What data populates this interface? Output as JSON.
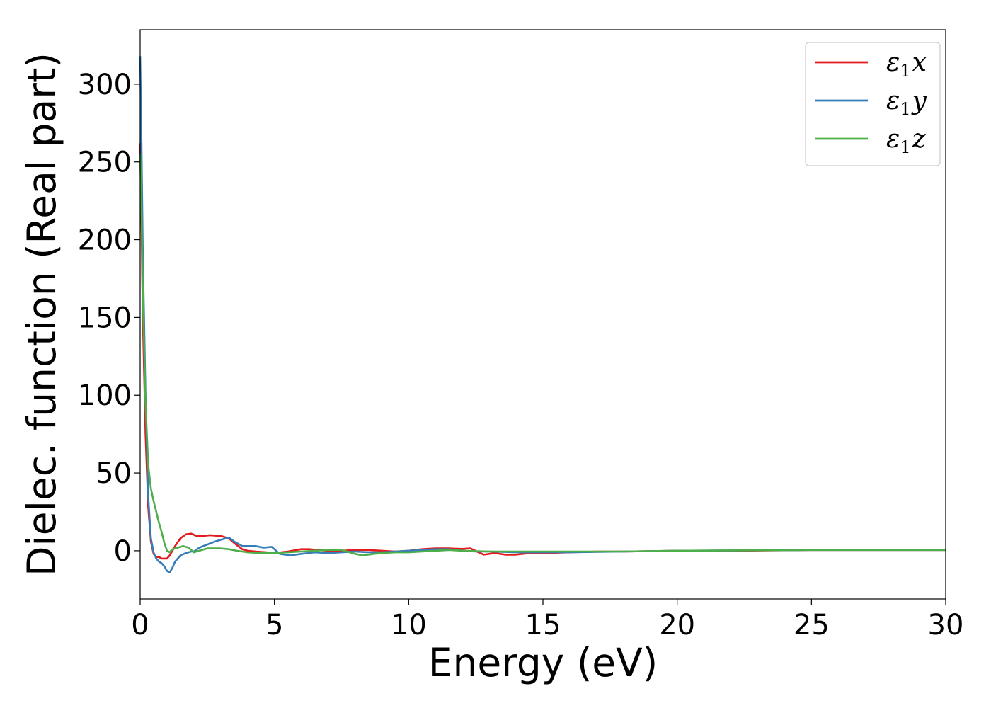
{
  "chart_data": {
    "type": "line",
    "xlabel": "Energy (eV)",
    "ylabel": "Dielec. function (Real part)",
    "xlim": [
      0,
      30
    ],
    "ylim": [
      -31,
      335
    ],
    "xticks": [
      0,
      5,
      10,
      15,
      20,
      25,
      30
    ],
    "xtick_labels": [
      "0",
      "5",
      "10",
      "15",
      "20",
      "25",
      "30"
    ],
    "yticks": [
      0,
      50,
      100,
      150,
      200,
      250,
      300
    ],
    "ytick_labels": [
      "0",
      "50",
      "100",
      "150",
      "200",
      "250",
      "300"
    ],
    "grid": false,
    "legend_position": "top-right",
    "series": [
      {
        "name": "ε1x",
        "legend_base": "ε",
        "legend_sub": "1",
        "legend_var": "x",
        "color": "#e41a1c",
        "x": [
          0.0,
          0.05,
          0.1,
          0.2,
          0.3,
          0.4,
          0.5,
          0.6,
          0.7,
          0.8,
          0.9,
          1.0,
          1.1,
          1.2,
          1.3,
          1.5,
          1.7,
          1.9,
          2.1,
          2.3,
          2.6,
          3.0,
          3.3,
          3.5,
          3.8,
          4.0,
          4.3,
          4.7,
          5.0,
          5.5,
          6.0,
          6.3,
          6.6,
          7.0,
          7.5,
          8.0,
          8.5,
          9.0,
          9.5,
          10.0,
          10.5,
          11.0,
          11.5,
          12.0,
          12.3,
          12.6,
          12.8,
          13.2,
          13.6,
          14.0,
          14.5,
          15.0,
          16.0,
          17.0,
          18.0,
          20.0,
          22.0,
          25.0,
          28.0,
          30.0
        ],
        "y": [
          262,
          210,
          150,
          75,
          28,
          6,
          -2,
          -4,
          -4,
          -5,
          -5,
          -5,
          -3,
          0,
          3,
          8,
          10.5,
          11,
          9.5,
          9.5,
          10,
          9.5,
          8,
          5,
          1,
          0,
          -0.5,
          -1,
          -1.5,
          -0.5,
          1,
          1,
          0.5,
          0,
          0,
          0.5,
          0.5,
          0,
          -0.5,
          0,
          1,
          1.5,
          1.5,
          1.2,
          1.5,
          -1,
          -2.5,
          -1.5,
          -2.5,
          -2.5,
          -1.5,
          -1.5,
          -1,
          -0.5,
          -0.5,
          0,
          0,
          0.5,
          0.5,
          0.5
        ]
      },
      {
        "name": "ε1y",
        "legend_base": "ε",
        "legend_sub": "1",
        "legend_var": "y",
        "color": "#377eb8",
        "x": [
          0.0,
          0.05,
          0.1,
          0.2,
          0.3,
          0.4,
          0.5,
          0.6,
          0.7,
          0.8,
          0.9,
          1.0,
          1.1,
          1.2,
          1.3,
          1.5,
          1.7,
          1.9,
          2.0,
          2.2,
          2.5,
          2.8,
          3.0,
          3.3,
          3.5,
          3.8,
          4.0,
          4.3,
          4.6,
          4.9,
          5.2,
          5.6,
          6.0,
          6.5,
          7.0,
          7.5,
          8.0,
          8.5,
          9.0,
          9.5,
          10.0,
          10.5,
          11.0,
          11.5,
          12.0,
          12.5,
          13.0,
          14.0,
          15.0,
          16.0,
          18.0,
          20.0,
          25.0,
          30.0
        ],
        "y": [
          318,
          260,
          190,
          100,
          35,
          8,
          -1,
          -5,
          -7,
          -8,
          -10,
          -13,
          -14,
          -11,
          -7,
          -3,
          -1.5,
          -0.5,
          -0.5,
          2,
          4,
          6,
          7,
          8.5,
          6,
          3,
          3,
          3,
          2,
          2.5,
          -2,
          -3,
          -2,
          -1,
          -1.5,
          -1,
          -0.5,
          -1,
          -1,
          -0.5,
          0,
          0.5,
          1,
          1,
          0,
          -0.5,
          -0.5,
          -1,
          -1,
          -1,
          -0.5,
          0,
          0.5,
          0.5
        ]
      },
      {
        "name": "ε1z",
        "legend_base": "ε",
        "legend_sub": "1",
        "legend_var": "z",
        "color": "#4daf4a",
        "x": [
          0.0,
          0.05,
          0.1,
          0.2,
          0.3,
          0.4,
          0.5,
          0.6,
          0.7,
          0.8,
          0.9,
          1.0,
          1.1,
          1.2,
          1.4,
          1.6,
          1.8,
          2.0,
          2.2,
          2.5,
          3.0,
          3.3,
          3.6,
          4.0,
          4.5,
          5.0,
          5.5,
          6.0,
          6.5,
          7.0,
          7.5,
          8.0,
          8.3,
          8.7,
          9.0,
          9.5,
          10.0,
          10.5,
          11.0,
          11.5,
          12.0,
          13.0,
          14.0,
          15.0,
          16.0,
          18.0,
          20.0,
          25.0,
          30.0
        ],
        "y": [
          255,
          220,
          165,
          95,
          55,
          40,
          32,
          25,
          18,
          12,
          5,
          0,
          -1,
          1,
          2,
          3,
          2,
          -1,
          0,
          1.5,
          1.5,
          1,
          0,
          -1,
          -1.5,
          -1.5,
          -1,
          -0.5,
          0,
          0.5,
          0.5,
          -2,
          -3,
          -2,
          -1.5,
          -1,
          -1,
          -0.5,
          0,
          0.5,
          0,
          -0.5,
          -0.5,
          -0.5,
          -0.5,
          -0.5,
          0,
          0.5,
          0.5
        ]
      }
    ]
  }
}
